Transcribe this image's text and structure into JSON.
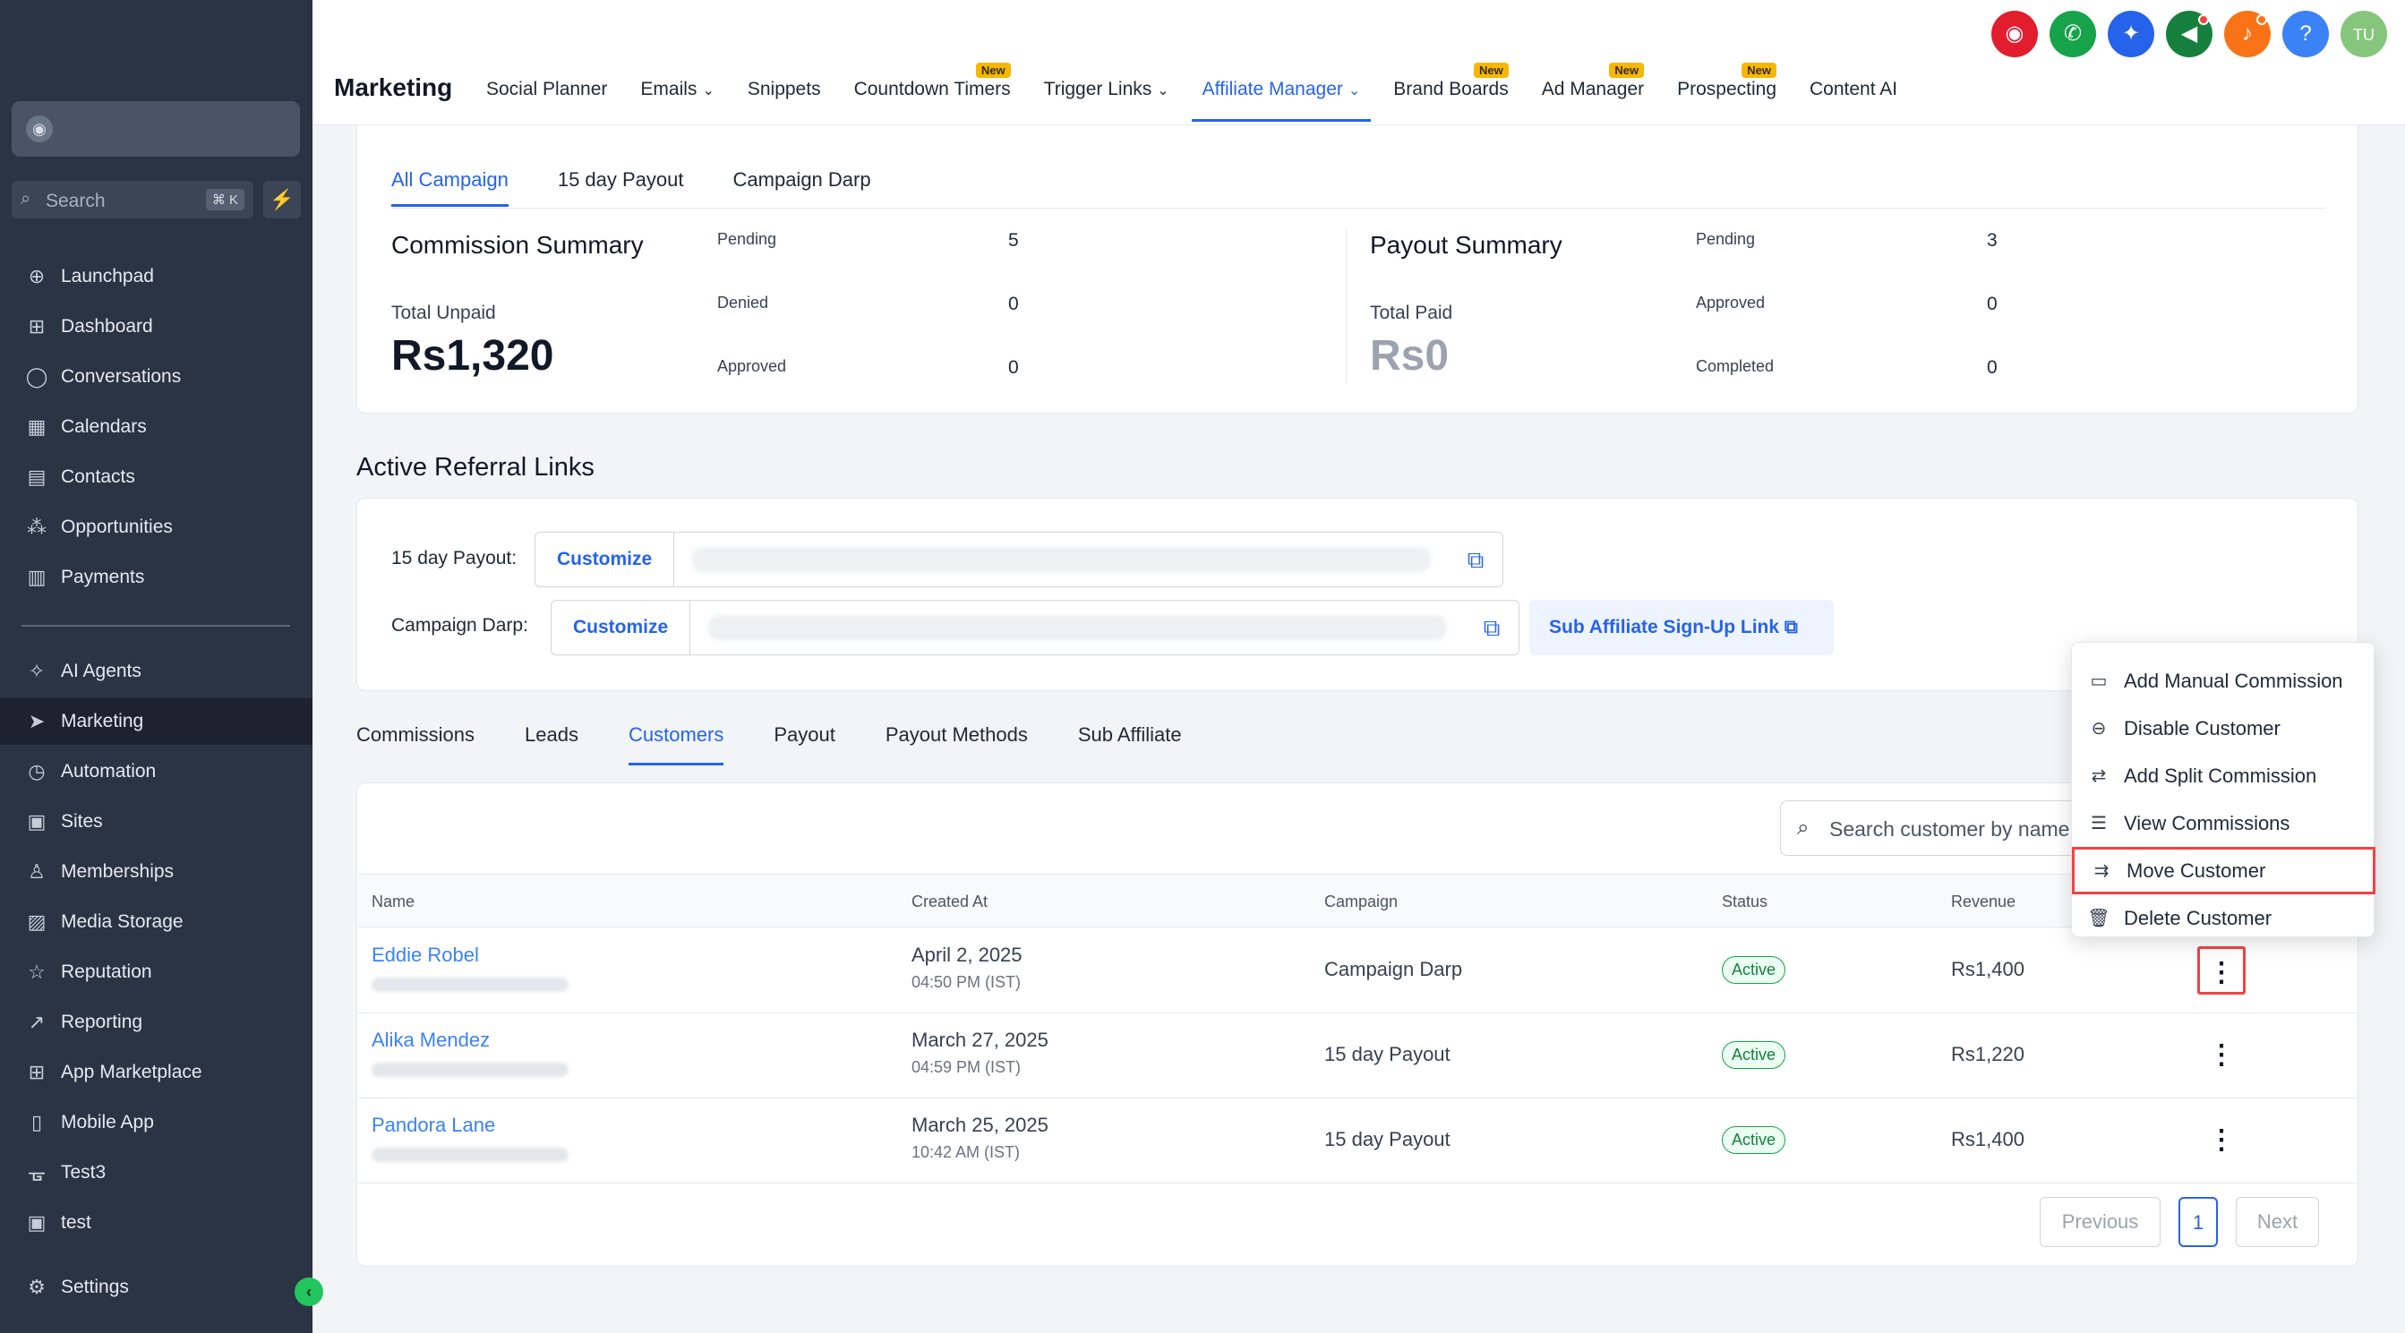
{
  "sidebar": {
    "search_placeholder": "Search",
    "search_shortcut": "⌘ K",
    "items": [
      {
        "label": "Launchpad",
        "icon": "launchpad-icon",
        "glyph": "⊕"
      },
      {
        "label": "Dashboard",
        "icon": "dashboard-icon",
        "glyph": "⊞"
      },
      {
        "label": "Conversations",
        "icon": "chat-icon",
        "glyph": "◯"
      },
      {
        "label": "Calendars",
        "icon": "calendar-icon",
        "glyph": "▦"
      },
      {
        "label": "Contacts",
        "icon": "contacts-icon",
        "glyph": "▤"
      },
      {
        "label": "Opportunities",
        "icon": "opportunities-icon",
        "glyph": "⁂"
      },
      {
        "label": "Payments",
        "icon": "payments-icon",
        "glyph": "▥"
      },
      {
        "label": "AI Agents",
        "icon": "ai-agents-icon",
        "glyph": "✧"
      },
      {
        "label": "Marketing",
        "icon": "send-icon",
        "glyph": "➤"
      },
      {
        "label": "Automation",
        "icon": "automation-icon",
        "glyph": "◷"
      },
      {
        "label": "Sites",
        "icon": "sites-icon",
        "glyph": "▣"
      },
      {
        "label": "Memberships",
        "icon": "memberships-icon",
        "glyph": "♙"
      },
      {
        "label": "Media Storage",
        "icon": "media-icon",
        "glyph": "▨"
      },
      {
        "label": "Reputation",
        "icon": "star-icon",
        "glyph": "☆"
      },
      {
        "label": "Reporting",
        "icon": "reporting-icon",
        "glyph": "↗"
      },
      {
        "label": "App Marketplace",
        "icon": "marketplace-icon",
        "glyph": "⊞"
      },
      {
        "label": "Mobile App",
        "icon": "mobile-icon",
        "glyph": "▯"
      },
      {
        "label": "Test3",
        "icon": "test3-icon",
        "glyph": "ᚗ"
      },
      {
        "label": "test",
        "icon": "test-icon",
        "glyph": "▣"
      },
      {
        "label": "Settings",
        "icon": "gear-icon",
        "glyph": "⚙"
      }
    ]
  },
  "topbar": {
    "title": "Marketing",
    "icons": [
      {
        "name": "speedometer-icon",
        "glyph": "◉",
        "color": "#e11d2e"
      },
      {
        "name": "phone-icon",
        "glyph": "✆",
        "color": "#16a34a"
      },
      {
        "name": "sparkle-icon",
        "glyph": "✦",
        "color": "#2563eb"
      },
      {
        "name": "megaphone-icon",
        "glyph": "◀",
        "color": "#15803d"
      },
      {
        "name": "bell-icon",
        "glyph": "♪",
        "color": "#f97316"
      },
      {
        "name": "help-icon",
        "glyph": "?",
        "color": "#3b82f6"
      },
      {
        "name": "avatar",
        "glyph": "TU",
        "color": "#86c67c"
      }
    ],
    "menu": [
      {
        "label": "Social Planner",
        "new": false,
        "caret": false
      },
      {
        "label": "Emails",
        "new": false,
        "caret": true
      },
      {
        "label": "Snippets",
        "new": false,
        "caret": false
      },
      {
        "label": "Countdown Timers",
        "new": true,
        "caret": false
      },
      {
        "label": "Trigger Links",
        "new": false,
        "caret": true
      },
      {
        "label": "Affiliate Manager",
        "new": false,
        "caret": true,
        "active": true
      },
      {
        "label": "Brand Boards",
        "new": true,
        "caret": false
      },
      {
        "label": "Ad Manager",
        "new": true,
        "caret": false
      },
      {
        "label": "Prospecting",
        "new": true,
        "caret": false
      },
      {
        "label": "Content AI",
        "new": false,
        "caret": false
      }
    ],
    "new_badge": "New"
  },
  "campaign_tabs": [
    "All Campaign",
    "15 day Payout",
    "Campaign Darp"
  ],
  "commission_summary": {
    "title": "Commission Summary",
    "total_label": "Total Unpaid",
    "total_value": "Rs1,320",
    "stats": [
      {
        "label": "Pending",
        "value": "5"
      },
      {
        "label": "Denied",
        "value": "0"
      },
      {
        "label": "Approved",
        "value": "0"
      }
    ]
  },
  "payout_summary": {
    "title": "Payout Summary",
    "total_label": "Total Paid",
    "total_value": "Rs0",
    "stats": [
      {
        "label": "Pending",
        "value": "3"
      },
      {
        "label": "Approved",
        "value": "0"
      },
      {
        "label": "Completed",
        "value": "0"
      }
    ]
  },
  "referral": {
    "title": "Active Referral Links",
    "links": [
      {
        "label": "15 day Payout:",
        "button": "Customize"
      },
      {
        "label": "Campaign Darp:",
        "button": "Customize"
      }
    ],
    "sub_affiliate": "Sub Affiliate Sign-Up Link"
  },
  "section_tabs": [
    "Commissions",
    "Leads",
    "Customers",
    "Payout",
    "Payout Methods",
    "Sub Affiliate"
  ],
  "table": {
    "search_placeholder": "Search customer by name",
    "headers": [
      "Name",
      "Created At",
      "Campaign",
      "Status",
      "Revenue"
    ],
    "rows": [
      {
        "name": "Eddie Robel",
        "date": "April 2, 2025",
        "time": "04:50 PM (IST)",
        "campaign": "Campaign Darp",
        "status": "Active",
        "revenue": "Rs1,400"
      },
      {
        "name": "Alika Mendez",
        "date": "March 27, 2025",
        "time": "04:59 PM (IST)",
        "campaign": "15 day Payout",
        "status": "Active",
        "revenue": "Rs1,220"
      },
      {
        "name": "Pandora Lane",
        "date": "March 25, 2025",
        "time": "10:42 AM (IST)",
        "campaign": "15 day Payout",
        "status": "Active",
        "revenue": "Rs1,400"
      }
    ]
  },
  "pagination": {
    "previous": "Previous",
    "page": "1",
    "next": "Next"
  },
  "dropdown": [
    {
      "label": "Add Manual Commission",
      "icon": "money-icon",
      "glyph": "▭"
    },
    {
      "label": "Disable Customer",
      "icon": "minus-circle-icon",
      "glyph": "⊖"
    },
    {
      "label": "Add Split Commission",
      "icon": "swap-icon",
      "glyph": "⇄"
    },
    {
      "label": "View Commissions",
      "icon": "list-icon",
      "glyph": "☰"
    },
    {
      "label": "Move Customer",
      "icon": "move-icon",
      "glyph": "⇉",
      "highlight": true
    },
    {
      "label": "Delete Customer",
      "icon": "trash-icon",
      "glyph": "🗑"
    }
  ]
}
